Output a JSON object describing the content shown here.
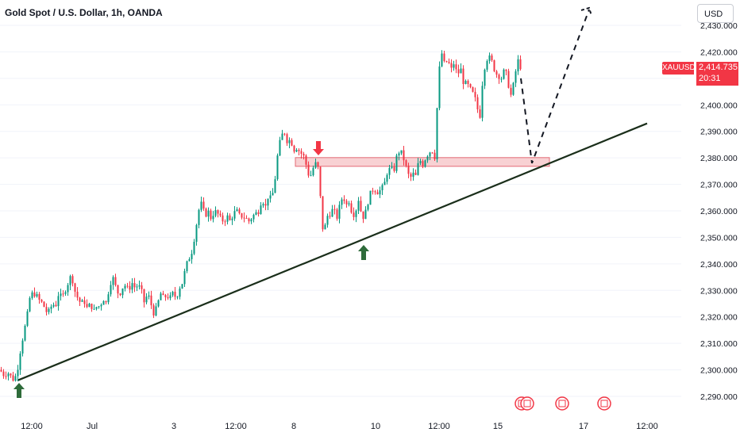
{
  "header": {
    "title": "Gold Spot / U.S. Dollar, 1h, OANDA",
    "currency_label": "USD"
  },
  "price_tag": {
    "symbol": "XAUUSD",
    "price": "2,414.735",
    "countdown": "20:31"
  },
  "colors": {
    "up": "#089981",
    "down": "#f23645",
    "trendline": "#1a2e1a",
    "zone_fill": "#f7c9cc",
    "zone_stroke": "#e0525e",
    "arrow_up": "#2e6b3a",
    "arrow_down": "#f23645"
  },
  "chart_data": {
    "type": "candlestick",
    "instrument": "XAUUSD",
    "timeframe": "1h",
    "y_ticks": [
      "2,290.000",
      "2,300.000",
      "2,310.000",
      "2,320.000",
      "2,330.000",
      "2,340.000",
      "2,350.000",
      "2,360.000",
      "2,370.000",
      "2,380.000",
      "2,390.000",
      "2,400.000",
      "2,410.000",
      "2,420.000",
      "2,430.000"
    ],
    "y_values": [
      2290,
      2300,
      2310,
      2320,
      2330,
      2340,
      2350,
      2360,
      2370,
      2380,
      2390,
      2400,
      2410,
      2420,
      2430
    ],
    "x_ticks": [
      "12:00",
      "Jul",
      "3",
      "12:00",
      "8",
      "10",
      "12:00",
      "15",
      "17",
      "12:00"
    ],
    "ylim": [
      2287,
      2438
    ],
    "price_path": [
      [
        0,
        2300
      ],
      [
        5,
        2298
      ],
      [
        10,
        2299
      ],
      [
        15,
        2297
      ],
      [
        18,
        2296
      ],
      [
        22,
        2300
      ],
      [
        26,
        2308
      ],
      [
        30,
        2314
      ],
      [
        34,
        2320
      ],
      [
        38,
        2328
      ],
      [
        42,
        2329
      ],
      [
        46,
        2328
      ],
      [
        50,
        2326
      ],
      [
        54,
        2325
      ],
      [
        58,
        2322
      ],
      [
        62,
        2322
      ],
      [
        66,
        2325
      ],
      [
        70,
        2324
      ],
      [
        74,
        2329
      ],
      [
        78,
        2327
      ],
      [
        82,
        2330
      ],
      [
        86,
        2333
      ],
      [
        90,
        2336
      ],
      [
        94,
        2330
      ],
      [
        98,
        2327
      ],
      [
        102,
        2325
      ],
      [
        106,
        2326
      ],
      [
        110,
        2323
      ],
      [
        114,
        2325
      ],
      [
        118,
        2322
      ],
      [
        122,
        2324
      ],
      [
        126,
        2324
      ],
      [
        130,
        2327
      ],
      [
        134,
        2325
      ],
      [
        138,
        2332
      ],
      [
        142,
        2335
      ],
      [
        146,
        2331
      ],
      [
        150,
        2328
      ],
      [
        154,
        2331
      ],
      [
        158,
        2332
      ],
      [
        162,
        2330
      ],
      [
        166,
        2333
      ],
      [
        170,
        2331
      ],
      [
        174,
        2332
      ],
      [
        178,
        2330
      ],
      [
        182,
        2325
      ],
      [
        186,
        2329
      ],
      [
        190,
        2325
      ],
      [
        194,
        2321
      ],
      [
        198,
        2324
      ],
      [
        202,
        2329
      ],
      [
        206,
        2327
      ],
      [
        210,
        2328
      ],
      [
        214,
        2327
      ],
      [
        218,
        2329
      ],
      [
        222,
        2327
      ],
      [
        226,
        2331
      ],
      [
        230,
        2333
      ],
      [
        234,
        2339
      ],
      [
        238,
        2342
      ],
      [
        242,
        2345
      ],
      [
        246,
        2352
      ],
      [
        250,
        2360
      ],
      [
        254,
        2363
      ],
      [
        258,
        2358
      ],
      [
        262,
        2360
      ],
      [
        266,
        2357
      ],
      [
        270,
        2360
      ],
      [
        274,
        2359
      ],
      [
        278,
        2357
      ],
      [
        282,
        2356
      ],
      [
        286,
        2358
      ],
      [
        290,
        2356
      ],
      [
        294,
        2359
      ],
      [
        298,
        2360
      ],
      [
        302,
        2358
      ],
      [
        306,
        2358
      ],
      [
        310,
        2357
      ],
      [
        314,
        2356
      ],
      [
        318,
        2358
      ],
      [
        322,
        2359
      ],
      [
        326,
        2360
      ],
      [
        330,
        2365
      ],
      [
        334,
        2361
      ],
      [
        338,
        2366
      ],
      [
        342,
        2364
      ],
      [
        346,
        2371
      ],
      [
        350,
        2382
      ],
      [
        354,
        2388
      ],
      [
        358,
        2390
      ],
      [
        362,
        2386
      ],
      [
        366,
        2387
      ],
      [
        370,
        2383
      ],
      [
        374,
        2384
      ],
      [
        378,
        2382
      ],
      [
        382,
        2381
      ],
      [
        386,
        2377
      ],
      [
        390,
        2372
      ],
      [
        394,
        2376
      ],
      [
        398,
        2378
      ],
      [
        402,
        2375
      ],
      [
        405,
        2355
      ],
      [
        408,
        2352
      ],
      [
        412,
        2358
      ],
      [
        416,
        2359
      ],
      [
        420,
        2361
      ],
      [
        424,
        2357
      ],
      [
        428,
        2362
      ],
      [
        432,
        2366
      ],
      [
        436,
        2362
      ],
      [
        440,
        2364
      ],
      [
        444,
        2358
      ],
      [
        448,
        2360
      ],
      [
        452,
        2365
      ],
      [
        456,
        2357
      ],
      [
        460,
        2359
      ],
      [
        464,
        2364
      ],
      [
        468,
        2368
      ],
      [
        472,
        2368
      ],
      [
        476,
        2367
      ],
      [
        480,
        2368
      ],
      [
        484,
        2370
      ],
      [
        488,
        2375
      ],
      [
        492,
        2376
      ],
      [
        496,
        2375
      ],
      [
        500,
        2381
      ],
      [
        504,
        2383
      ],
      [
        508,
        2380
      ],
      [
        512,
        2376
      ],
      [
        516,
        2372
      ],
      [
        520,
        2374
      ],
      [
        524,
        2373
      ],
      [
        528,
        2380
      ],
      [
        532,
        2377
      ],
      [
        536,
        2380
      ],
      [
        540,
        2382
      ],
      [
        544,
        2383
      ],
      [
        548,
        2380
      ],
      [
        552,
        2410
      ],
      [
        556,
        2420
      ],
      [
        560,
        2415
      ],
      [
        564,
        2417
      ],
      [
        568,
        2413
      ],
      [
        572,
        2416
      ],
      [
        576,
        2411
      ],
      [
        580,
        2414
      ],
      [
        584,
        2408
      ],
      [
        588,
        2408
      ],
      [
        592,
        2406
      ],
      [
        596,
        2404
      ],
      [
        600,
        2401
      ],
      [
        604,
        2394
      ],
      [
        608,
        2410
      ],
      [
        612,
        2417
      ],
      [
        616,
        2418
      ],
      [
        620,
        2416
      ],
      [
        624,
        2412
      ],
      [
        628,
        2411
      ],
      [
        632,
        2410
      ],
      [
        636,
        2414
      ],
      [
        640,
        2408
      ],
      [
        644,
        2403
      ],
      [
        648,
        2410
      ],
      [
        652,
        2417
      ],
      [
        656,
        2414
      ]
    ],
    "trendline": [
      [
        22,
        2296
      ],
      [
        815,
        2393
      ]
    ],
    "resistance_zone": {
      "x_from": 372,
      "x_to": 692,
      "top": 2379.5,
      "bottom": 2378.0
    },
    "projection": [
      [
        656,
        2410
      ],
      [
        670,
        2378
      ],
      [
        742,
        2436
      ]
    ]
  }
}
